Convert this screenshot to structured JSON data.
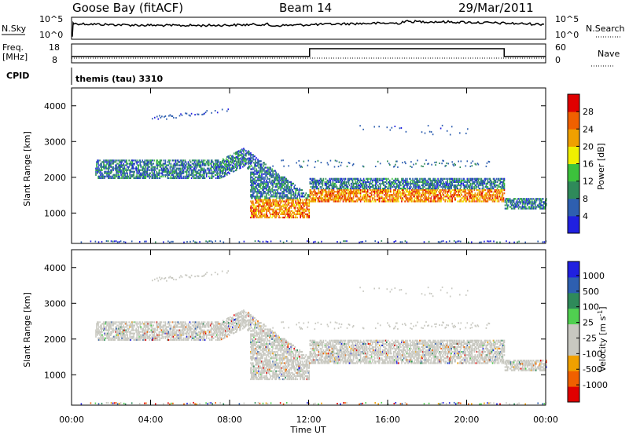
{
  "header": {
    "station": "Goose Bay (fitACF)",
    "beam": "Beam 14",
    "date": "29/Mar/2011"
  },
  "strip_labels": {
    "nsky": "N.Sky",
    "nsearch": "N.Search",
    "freq": "Freq.",
    "freq_unit": "[MHz]",
    "nave": "Nave",
    "cpid": "CPID",
    "cpid_value": "themis (tau) 3310",
    "noise_ticks": [
      "10^5",
      "10^0"
    ],
    "freq_ticks": [
      "18",
      "8"
    ],
    "nave_ticks": [
      "60",
      "0"
    ]
  },
  "colors": {
    "power": [
      "#2020e0",
      "#2e5fb0",
      "#2f8a5a",
      "#3cc23c",
      "#f0f000",
      "#f0a000",
      "#f06000",
      "#e00000"
    ],
    "velocity": [
      "#e00000",
      "#f06000",
      "#f0a000",
      "#c8c8c0",
      "#c8c8c0",
      "#50d050",
      "#2f8a5a",
      "#2e5fb0",
      "#2020e0"
    ]
  },
  "chart_data": [
    {
      "type": "heatmap",
      "quantity": "power",
      "xlabel": "",
      "ylabel": "Slant Range [km]",
      "x_ticks": [
        "00:00",
        "04:00",
        "08:00",
        "12:00",
        "16:00",
        "20:00",
        "00:00"
      ],
      "y_ticks": [
        1000,
        2000,
        3000,
        4000
      ],
      "ylim": [
        150,
        4500
      ],
      "colorbar_label": "Power [dB]",
      "colorbar_ticks": [
        4,
        8,
        12,
        16,
        20,
        24,
        28
      ],
      "colorbar_range": [
        0,
        32
      ]
    },
    {
      "type": "heatmap",
      "quantity": "velocity",
      "xlabel": "Time UT",
      "ylabel": "Slant Range [km]",
      "x_ticks": [
        "00:00",
        "04:00",
        "08:00",
        "12:00",
        "16:00",
        "20:00",
        "00:00"
      ],
      "y_ticks": [
        1000,
        2000,
        3000,
        4000
      ],
      "ylim": [
        150,
        4500
      ],
      "colorbar_label": "Velocity [m s",
      "colorbar_sup": "-1",
      "colorbar_close": "]",
      "colorbar_ticks": [
        "1000",
        "500",
        "100",
        "25",
        "-25",
        "-100",
        "-500",
        "-1000"
      ]
    }
  ]
}
